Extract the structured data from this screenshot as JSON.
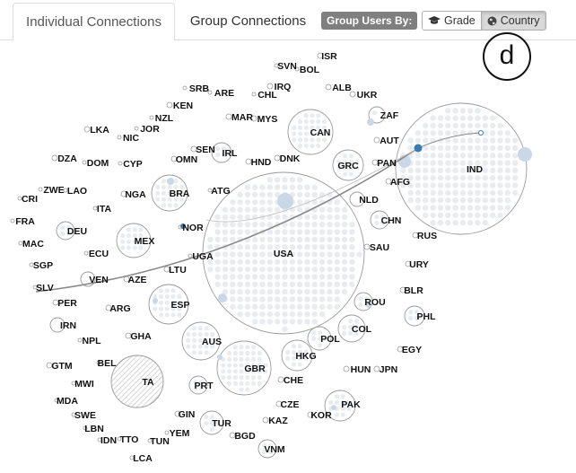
{
  "tabs": [
    {
      "label": "Individual Connections",
      "active": true
    },
    {
      "label": "Group Connections",
      "active": false
    }
  ],
  "group_by": {
    "label": "Group Users By:",
    "options": [
      {
        "label": "Grade",
        "icon": "graduation-cap-icon",
        "active": false
      },
      {
        "label": "Country",
        "icon": "globe-icon",
        "active": true
      }
    ]
  },
  "annotation": "d",
  "colors": {
    "circle_stroke": "#999999",
    "node_fill": "#e8ecf1",
    "highlight": "#c9d7e6",
    "selected": "#3d78b0",
    "link": "#888888"
  },
  "countries": [
    "ISR",
    "SVN",
    "BOL",
    "SRB",
    "ARE",
    "IRQ",
    "CHL",
    "ALB",
    "UKR",
    "KEN",
    "NZL",
    "JOR",
    "MAR",
    "MYS",
    "ZAF",
    "LKA",
    "NIC",
    "CAN",
    "AUT",
    "DZA",
    "DOM",
    "CYP",
    "OMN",
    "SEN",
    "IRL",
    "HND",
    "DNK",
    "GRC",
    "PAN",
    "IND",
    "ZWE",
    "LAO",
    "CRI",
    "NGA",
    "BRA",
    "ATG",
    "AFG",
    "NLD",
    "ITA",
    "FRA",
    "DEU",
    "NOR",
    "CHN",
    "MEX",
    "MAC",
    "ECU",
    "UGA",
    "USA",
    "SAU",
    "RUS",
    "SGP",
    "LTU",
    "URY",
    "SLV",
    "VEN",
    "AZE",
    "BLR",
    "PER",
    "ARG",
    "ESP",
    "ROU",
    "IRN",
    "GHA",
    "PHL",
    "NPL",
    "AUS",
    "POL",
    "COL",
    "EGY",
    "GTM",
    "BEL",
    "HKG",
    "HUN",
    "JPN",
    "MWI",
    "TA",
    "GBR",
    "PRT",
    "CHE",
    "MDA",
    "CZE",
    "SWE",
    "KOR",
    "PAK",
    "LBN",
    "GIN",
    "TUR",
    "KAZ",
    "IDN",
    "TTO",
    "TUN",
    "YEM",
    "BGD",
    "VNM",
    "LCA"
  ]
}
